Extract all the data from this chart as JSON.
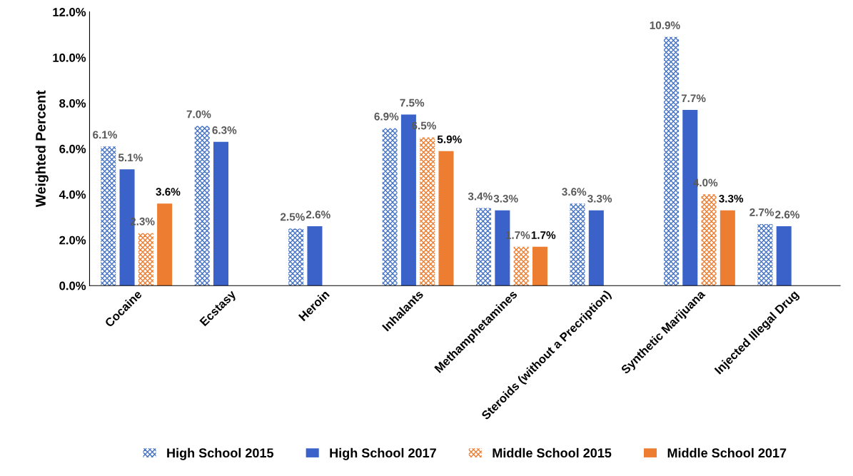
{
  "chart_data": {
    "type": "bar",
    "ylabel": "Weighted Percent",
    "categories": [
      "Cocaine",
      "Ecstasy",
      "Heroin",
      "Inhalants",
      "Methamphetamines",
      "Steroids (without a Precription)",
      "Synthetic Marijuana",
      "Injected Illegal Drug"
    ],
    "series": [
      {
        "name": "High School 2015",
        "color": "#4472c4",
        "values": [
          6.1,
          7.0,
          2.5,
          6.9,
          3.4,
          3.6,
          10.9,
          2.7
        ],
        "value_labels": [
          "6.1%",
          "7.0%",
          "2.5%",
          "6.9%",
          "3.4%",
          "3.6%",
          "10.9%",
          "2.7%"
        ]
      },
      {
        "name": "High School 2017",
        "color": "#3a62c9",
        "values": [
          5.1,
          6.3,
          2.6,
          7.5,
          3.3,
          3.3,
          7.7,
          2.6
        ],
        "value_labels": [
          "5.1%",
          "6.3%",
          "2.6%",
          "7.5%",
          "3.3%",
          "3.3%",
          "7.7%",
          "2.6%"
        ]
      },
      {
        "name": "Middle School 2015",
        "color": "#ed7d31",
        "values": [
          2.3,
          null,
          null,
          6.5,
          1.7,
          null,
          4.0,
          null
        ],
        "value_labels": [
          "2.3%",
          null,
          null,
          "6.5%",
          "1.7%",
          null,
          "4.0%",
          null
        ]
      },
      {
        "name": "Middle School 2017",
        "color": "#ed7d31",
        "values": [
          3.6,
          null,
          null,
          5.9,
          1.7,
          null,
          3.3,
          null
        ],
        "value_labels": [
          "3.6%",
          null,
          null,
          "5.9%",
          "1.7%",
          null,
          "3.3%",
          null
        ]
      }
    ],
    "ylim": [
      0,
      12
    ],
    "yticks": [
      {
        "value": 0,
        "label": "0.0%"
      },
      {
        "value": 2,
        "label": "2.0%"
      },
      {
        "value": 4,
        "label": "4.0%"
      },
      {
        "value": 6,
        "label": "6.0%"
      },
      {
        "value": 8,
        "label": "8.0%"
      },
      {
        "value": 10,
        "label": "10.0%"
      },
      {
        "value": 12,
        "label": "12.0%"
      }
    ],
    "grid": false,
    "legend": "bottom"
  }
}
